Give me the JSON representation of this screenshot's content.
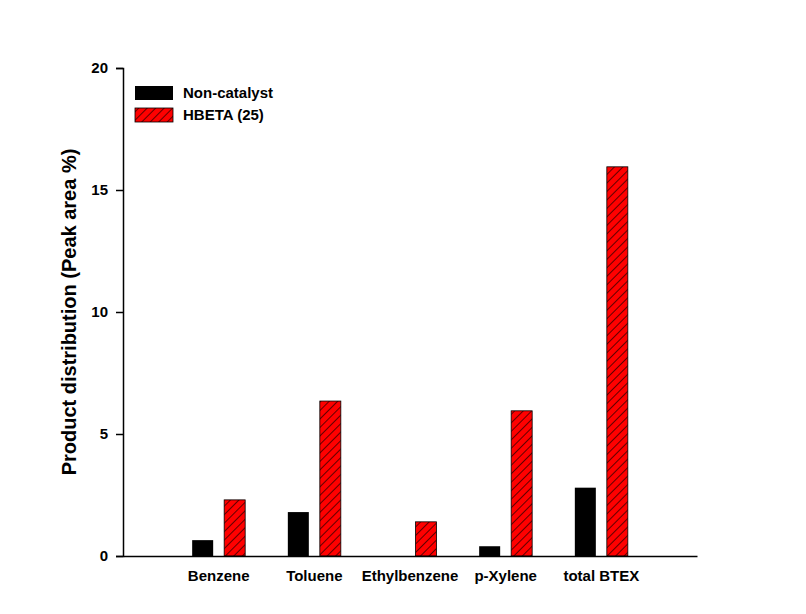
{
  "chart_data": {
    "type": "bar",
    "ylabel": "Product distribution (Peak area %)",
    "categories": [
      "Benzene",
      "Toluene",
      "Ethylbenzene",
      "p-Xylene",
      "total BTEX"
    ],
    "series": [
      {
        "name": "Non-catalyst",
        "color": "#000000",
        "values": [
          0.65,
          1.8,
          0,
          0.4,
          2.8
        ]
      },
      {
        "name": "HBETA (25)",
        "color": "#ff0000",
        "values": [
          2.3,
          6.35,
          1.4,
          5.95,
          15.95
        ]
      }
    ],
    "ylim": [
      0,
      20
    ],
    "yticks": [
      0,
      5,
      10,
      15,
      20
    ],
    "grid": false,
    "legend": "upper left"
  }
}
